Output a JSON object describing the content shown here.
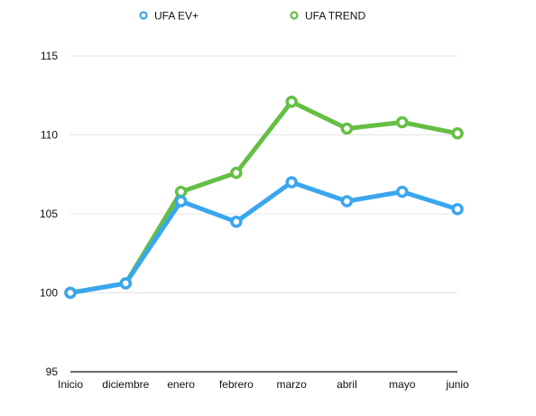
{
  "chart_data": {
    "type": "line",
    "title": "",
    "xlabel": "",
    "ylabel": "",
    "categories": [
      "Inicio",
      "diciembre",
      "enero",
      "febrero",
      "marzo",
      "abril",
      "mayo",
      "junio"
    ],
    "ylim": [
      95,
      115
    ],
    "yticks": [
      95,
      100,
      105,
      110,
      115
    ],
    "grid": true,
    "legend_position": "top",
    "series": [
      {
        "name": "UFA EV+",
        "color": "#3aa6ee",
        "values": [
          100.0,
          100.6,
          105.8,
          104.5,
          107.0,
          105.8,
          106.4,
          105.3
        ]
      },
      {
        "name": "UFA TREND",
        "color": "#64bf44",
        "values": [
          100.0,
          100.6,
          106.4,
          107.6,
          112.1,
          110.4,
          110.8,
          110.1
        ]
      }
    ]
  }
}
